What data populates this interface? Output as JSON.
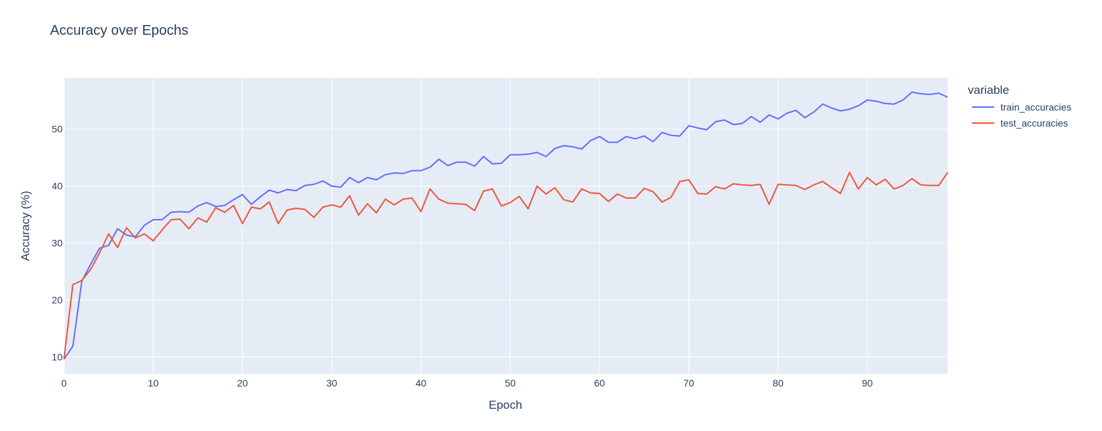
{
  "chart_data": {
    "type": "line",
    "title": "Accuracy over Epochs",
    "xlabel": "Epoch",
    "ylabel": "Accuracy (%)",
    "xlim": [
      0,
      99
    ],
    "ylim": [
      7,
      59
    ],
    "x_ticks": [
      0,
      10,
      20,
      30,
      40,
      50,
      60,
      70,
      80,
      90
    ],
    "y_ticks": [
      10,
      20,
      30,
      40,
      50
    ],
    "grid": true,
    "plot_bg_color": "#e5ecf6",
    "legend": {
      "title": "variable",
      "position": "right"
    },
    "series": [
      {
        "name": "train_accuracies",
        "color": "#636efa",
        "values": [
          9.6,
          11.9,
          23.3,
          26.3,
          29.1,
          29.6,
          32.5,
          31.4,
          31.1,
          33.1,
          34.1,
          34.1,
          35.4,
          35.5,
          35.4,
          36.5,
          37.1,
          36.4,
          36.6,
          37.6,
          38.5,
          36.8,
          38.1,
          39.3,
          38.8,
          39.4,
          39.2,
          40.1,
          40.3,
          40.9,
          40.0,
          39.8,
          41.5,
          40.6,
          41.5,
          41.1,
          42.0,
          42.3,
          42.2,
          42.7,
          42.7,
          43.3,
          44.7,
          43.6,
          44.2,
          44.2,
          43.5,
          45.2,
          43.9,
          44.0,
          45.5,
          45.5,
          45.6,
          45.9,
          45.2,
          46.6,
          47.1,
          46.9,
          46.5,
          48.0,
          48.7,
          47.7,
          47.7,
          48.7,
          48.3,
          48.8,
          47.8,
          49.4,
          48.9,
          48.8,
          50.6,
          50.2,
          49.9,
          51.3,
          51.6,
          50.8,
          51.0,
          52.2,
          51.2,
          52.5,
          51.8,
          52.8,
          53.3,
          52.0,
          53.0,
          54.4,
          53.7,
          53.2,
          53.5,
          54.1,
          55.1,
          54.9,
          54.5,
          54.4,
          55.1,
          56.5,
          56.2,
          56.1,
          56.3,
          55.6
        ]
      },
      {
        "name": "test_accuracies",
        "color": "#ef553b",
        "values": [
          9.6,
          22.7,
          23.4,
          25.4,
          28.3,
          31.6,
          29.2,
          32.7,
          30.9,
          31.6,
          30.4,
          32.3,
          34.1,
          34.2,
          32.5,
          34.4,
          33.7,
          36.2,
          35.4,
          36.6,
          33.4,
          36.3,
          36.0,
          37.2,
          33.4,
          35.8,
          36.1,
          35.9,
          34.5,
          36.3,
          36.7,
          36.3,
          38.3,
          34.9,
          36.9,
          35.3,
          37.7,
          36.7,
          37.7,
          37.9,
          35.5,
          39.5,
          37.7,
          37.0,
          36.9,
          36.8,
          35.7,
          39.1,
          39.5,
          36.5,
          37.1,
          38.2,
          36.0,
          40.0,
          38.6,
          39.7,
          37.6,
          37.2,
          39.5,
          38.8,
          38.7,
          37.3,
          38.6,
          37.9,
          37.9,
          39.6,
          39.0,
          37.2,
          38.0,
          40.8,
          41.1,
          38.7,
          38.6,
          39.9,
          39.5,
          40.4,
          40.2,
          40.1,
          40.3,
          36.8,
          40.3,
          40.2,
          40.1,
          39.4,
          40.2,
          40.8,
          39.7,
          38.7,
          42.4,
          39.5,
          41.5,
          40.2,
          41.2,
          39.5,
          40.1,
          41.3,
          40.2,
          40.1,
          40.1,
          42.4
        ]
      }
    ]
  }
}
